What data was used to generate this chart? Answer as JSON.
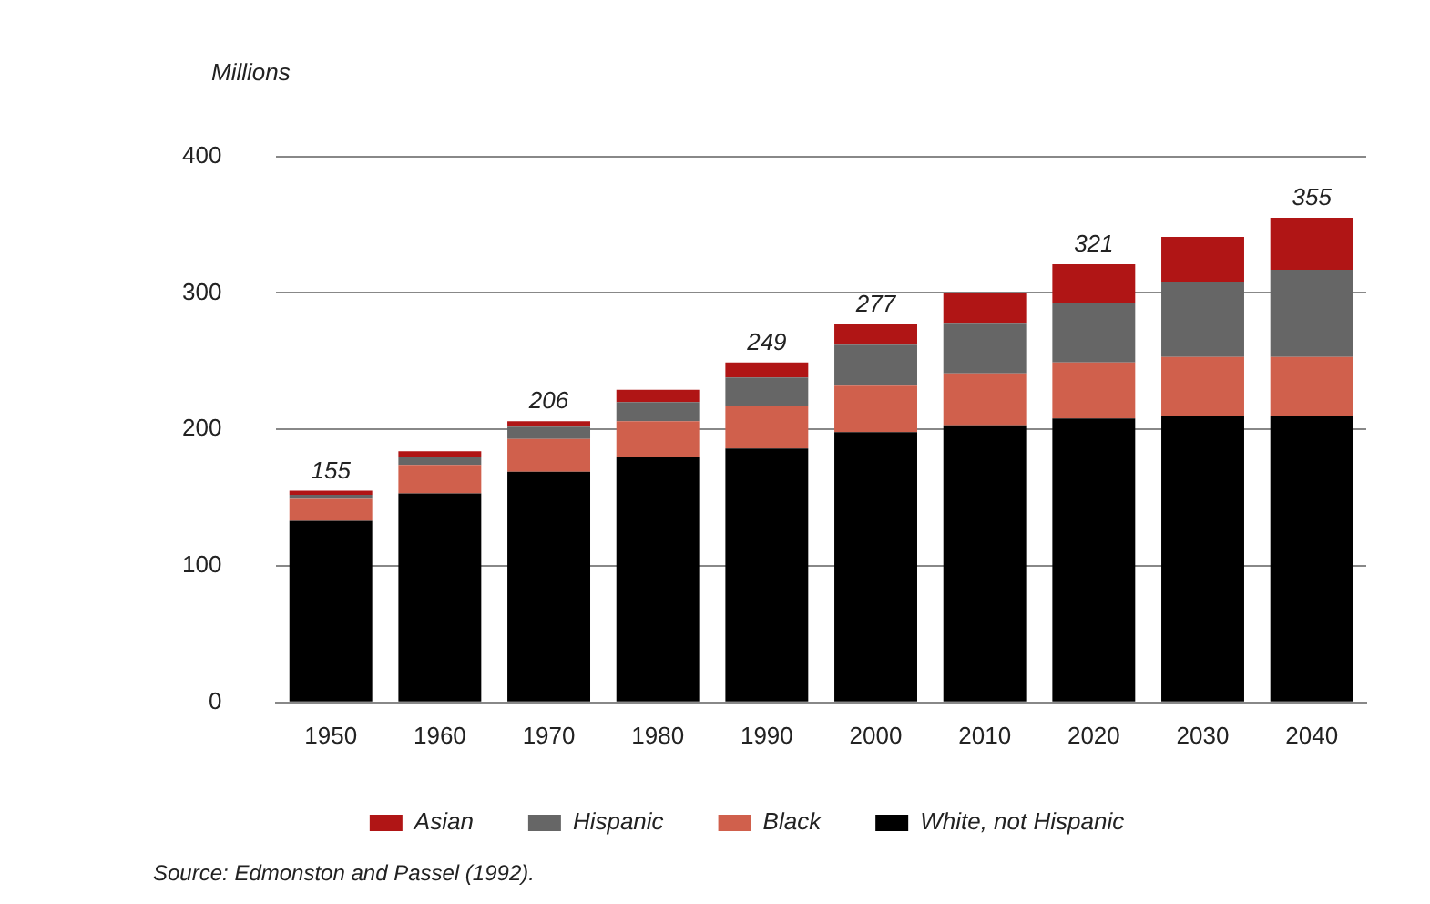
{
  "chart_data": {
    "type": "bar",
    "stacked": true,
    "ylabel": "Millions",
    "categories": [
      "1950",
      "1960",
      "1970",
      "1980",
      "1990",
      "2000",
      "2010",
      "2020",
      "2030",
      "2040"
    ],
    "series": [
      {
        "name": "White, not Hispanic",
        "color": "#000000",
        "values": [
          133,
          153,
          169,
          180,
          186,
          198,
          203,
          208,
          210,
          210
        ]
      },
      {
        "name": "Black",
        "color": "#d0604c",
        "values": [
          16,
          21,
          24,
          26,
          31,
          34,
          38,
          41,
          43,
          43
        ]
      },
      {
        "name": "Hispanic",
        "color": "#666666",
        "values": [
          3,
          6,
          9,
          14,
          21,
          30,
          37,
          44,
          55,
          64
        ]
      },
      {
        "name": "Asian",
        "color": "#b01515",
        "values": [
          3,
          4,
          4,
          9,
          11,
          15,
          22,
          28,
          33,
          38
        ]
      }
    ],
    "totals": [
      "155",
      null,
      "206",
      null,
      "249",
      "277",
      null,
      "321",
      null,
      "355"
    ],
    "ylim": [
      0,
      400
    ],
    "yticks": [
      0,
      100,
      200,
      300,
      400
    ],
    "grid": "y",
    "legend": "bottom",
    "annotations": [
      "Source: Edmonston and Passel (1992)."
    ]
  }
}
